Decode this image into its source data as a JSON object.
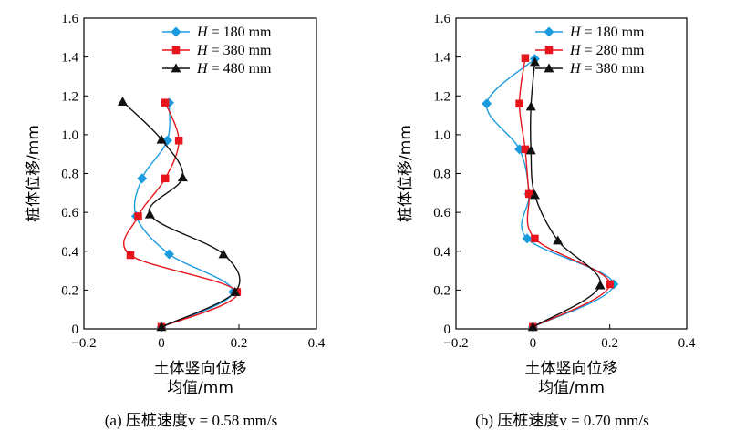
{
  "chart_data": [
    {
      "type": "line",
      "caption": "(a) 压桩速度v = 0.58 mm/s",
      "xlabel_line1": "土体竖向位移",
      "xlabel_line2": "均值/mm",
      "ylabel": "桩体位移/mm",
      "xlim": [
        -0.2,
        0.4
      ],
      "ylim": [
        0,
        1.6
      ],
      "xticks": [
        -0.2,
        0,
        0.2,
        0.4
      ],
      "xtick_labels": [
        "−0.2",
        "0",
        "0.2",
        "0.4"
      ],
      "yticks": [
        0,
        0.2,
        0.4,
        0.6,
        0.8,
        1.0,
        1.2,
        1.4,
        1.6
      ],
      "ytick_labels": [
        "0",
        "0.2",
        "0.4",
        "0.6",
        "0.8",
        "1.0",
        "1.2",
        "1.4",
        "1.6"
      ],
      "legend_position": "top-right",
      "series": [
        {
          "name": "H = 180 mm",
          "marker": "diamond",
          "color": "#1a9be0",
          "x": [
            0.0,
            0.185,
            0.02,
            -0.065,
            -0.05,
            0.015,
            0.02
          ],
          "y": [
            0.01,
            0.19,
            0.385,
            0.58,
            0.775,
            0.97,
            1.165
          ]
        },
        {
          "name": "H = 380 mm",
          "marker": "square",
          "color": "#e8141c",
          "x": [
            0.0,
            0.195,
            -0.08,
            -0.06,
            0.01,
            0.045,
            0.01
          ],
          "y": [
            0.01,
            0.19,
            0.38,
            0.58,
            0.775,
            0.97,
            1.165
          ]
        },
        {
          "name": "H = 480 mm",
          "marker": "triangle",
          "color": "#111111",
          "x": [
            0.0,
            0.19,
            0.16,
            -0.03,
            0.055,
            0.0,
            -0.1
          ],
          "y": [
            0.01,
            0.19,
            0.385,
            0.59,
            0.78,
            0.975,
            1.17
          ]
        }
      ]
    },
    {
      "type": "line",
      "caption": "(b) 压桩速度v = 0.70 mm/s",
      "xlabel_line1": "土体竖向位移",
      "xlabel_line2": "均值/mm",
      "ylabel": "桩体位移/mm",
      "xlim": [
        -0.2,
        0.4
      ],
      "ylim": [
        0,
        1.6
      ],
      "xticks": [
        -0.2,
        0,
        0.2,
        0.4
      ],
      "xtick_labels": [
        "−0.2",
        "0",
        "0.2",
        "0.4"
      ],
      "yticks": [
        0,
        0.2,
        0.4,
        0.6,
        0.8,
        1.0,
        1.2,
        1.4,
        1.6
      ],
      "ytick_labels": [
        "0",
        "0.2",
        "0.4",
        "0.6",
        "0.8",
        "1.0",
        "1.2",
        "1.4",
        "1.6"
      ],
      "legend_position": "top-right",
      "series": [
        {
          "name": "H = 180 mm",
          "marker": "diamond",
          "color": "#1a9be0",
          "x": [
            0.0,
            0.21,
            -0.015,
            -0.01,
            -0.035,
            -0.12,
            0.005
          ],
          "y": [
            0.01,
            0.23,
            0.465,
            0.695,
            0.925,
            1.16,
            1.39
          ]
        },
        {
          "name": "H = 280 mm",
          "marker": "square",
          "color": "#e8141c",
          "x": [
            0.0,
            0.2,
            0.005,
            -0.01,
            -0.02,
            -0.035,
            -0.02
          ],
          "y": [
            0.01,
            0.23,
            0.465,
            0.695,
            0.925,
            1.16,
            1.395
          ]
        },
        {
          "name": "H = 380 mm",
          "marker": "triangle",
          "color": "#111111",
          "x": [
            0.0,
            0.175,
            0.065,
            0.005,
            -0.005,
            -0.005,
            0.005
          ],
          "y": [
            0.01,
            0.225,
            0.455,
            0.69,
            0.92,
            1.145,
            1.375
          ]
        }
      ]
    }
  ]
}
